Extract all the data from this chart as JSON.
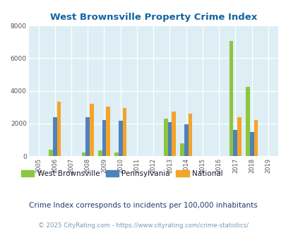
{
  "title": "West Brownsville Property Crime Index",
  "years": [
    2005,
    2006,
    2007,
    2008,
    2009,
    2010,
    2011,
    2012,
    2013,
    2014,
    2015,
    2016,
    2017,
    2018,
    2019
  ],
  "west_brownsville": [
    0,
    400,
    0,
    200,
    330,
    200,
    0,
    0,
    2300,
    770,
    0,
    0,
    7050,
    4250,
    0
  ],
  "pennsylvania": [
    0,
    2400,
    0,
    2400,
    2200,
    2150,
    0,
    0,
    2100,
    1950,
    0,
    0,
    1600,
    1480,
    0
  ],
  "national": [
    0,
    3350,
    0,
    3200,
    3050,
    2950,
    0,
    0,
    2750,
    2600,
    0,
    0,
    2400,
    2200,
    0
  ],
  "bar_width": 0.25,
  "ylim": [
    0,
    8000
  ],
  "yticks": [
    0,
    2000,
    4000,
    6000,
    8000
  ],
  "color_wb": "#8dc63f",
  "color_pa": "#4f81bd",
  "color_nat": "#f4a428",
  "bg_color": "#ddeef5",
  "grid_color": "#ffffff",
  "title_color": "#1464a0",
  "legend_label_wb": "West Brownsville",
  "legend_label_pa": "Pennsylvania",
  "legend_label_nat": "National",
  "legend_text_color": "#1a1a2e",
  "footnote1": "Crime Index corresponds to incidents per 100,000 inhabitants",
  "footnote2": "© 2025 CityRating.com - https://www.cityrating.com/crime-statistics/",
  "footnote1_color": "#1f3d6b",
  "footnote2_color": "#7a9ab5"
}
